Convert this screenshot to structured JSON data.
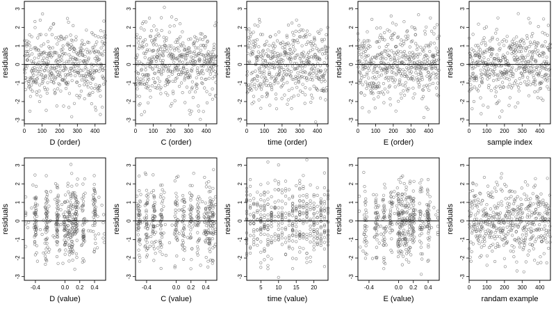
{
  "chart_data": [
    {
      "type": "scatter",
      "xlabel": "D (order)",
      "ylabel": "residuals",
      "x_range": [
        0,
        460
      ],
      "ylim": [
        -3.2,
        3.4
      ],
      "xticks": [
        0,
        100,
        200,
        300,
        400
      ],
      "yticks": [
        -3,
        -2,
        -1,
        0,
        1,
        2,
        3
      ],
      "hline": 0,
      "n_points": 460,
      "x_pattern": "index",
      "seed": 11
    },
    {
      "type": "scatter",
      "xlabel": "C (order)",
      "ylabel": "residuals",
      "x_range": [
        0,
        460
      ],
      "ylim": [
        -3.2,
        3.4
      ],
      "xticks": [
        0,
        100,
        200,
        300,
        400
      ],
      "yticks": [
        -3,
        -2,
        -1,
        0,
        1,
        2,
        3
      ],
      "hline": 0,
      "n_points": 460,
      "x_pattern": "index",
      "seed": 23
    },
    {
      "type": "scatter",
      "xlabel": "time (order)",
      "ylabel": "residuals",
      "x_range": [
        0,
        460
      ],
      "ylim": [
        -3.2,
        3.4
      ],
      "xticks": [
        0,
        100,
        200,
        300,
        400
      ],
      "yticks": [
        -3,
        -2,
        -1,
        0,
        1,
        2,
        3
      ],
      "hline": 0,
      "n_points": 460,
      "x_pattern": "index",
      "seed": 37
    },
    {
      "type": "scatter",
      "xlabel": "E (order)",
      "ylabel": "residuals",
      "x_range": [
        0,
        460
      ],
      "ylim": [
        -3.2,
        3.4
      ],
      "xticks": [
        0,
        100,
        200,
        300,
        400
      ],
      "yticks": [
        -3,
        -2,
        -1,
        0,
        1,
        2,
        3
      ],
      "hline": 0,
      "n_points": 460,
      "x_pattern": "index",
      "seed": 41
    },
    {
      "type": "scatter",
      "xlabel": "sample index",
      "ylabel": "residuals",
      "x_range": [
        0,
        460
      ],
      "ylim": [
        -3.2,
        3.4
      ],
      "xticks": [
        0,
        100,
        200,
        300,
        400
      ],
      "yticks": [
        -3,
        -2,
        -1,
        0,
        1,
        2,
        3
      ],
      "hline": 0,
      "n_points": 460,
      "x_pattern": "index",
      "seed": 53
    },
    {
      "type": "scatter",
      "xlabel": "D (value)",
      "ylabel": "residuals",
      "x_range": [
        -0.55,
        0.55
      ],
      "ylim": [
        -3.2,
        3.4
      ],
      "xticks": [
        -0.4,
        0.0,
        0.2,
        0.4
      ],
      "xtick_labels": [
        "-0.4",
        "0.0",
        "0.2",
        "0.4"
      ],
      "yticks": [
        -3,
        -2,
        -1,
        0,
        1,
        2,
        3
      ],
      "hline": 0,
      "n_points": 460,
      "x_pattern": "clustered",
      "x_clusters": [
        -0.4,
        -0.25,
        -0.1,
        0.0,
        0.05,
        0.1,
        0.15,
        0.25,
        0.4
      ],
      "x_spread": 0.5,
      "seed": 61
    },
    {
      "type": "scatter",
      "xlabel": "C (value)",
      "ylabel": "residuals",
      "x_range": [
        -0.55,
        0.55
      ],
      "ylim": [
        -3.2,
        3.4
      ],
      "xticks": [
        -0.4,
        0.0,
        0.2,
        0.4
      ],
      "xtick_labels": [
        "-0.4",
        "0.0",
        "0.2",
        "0.4"
      ],
      "yticks": [
        -3,
        -2,
        -1,
        0,
        1,
        2,
        3
      ],
      "hline": 0,
      "n_points": 460,
      "x_pattern": "clustered",
      "x_clusters": [
        -0.5,
        -0.4,
        -0.3,
        -0.2,
        0.0,
        0.1,
        0.2,
        0.3,
        0.4,
        0.45,
        0.5
      ],
      "x_spread": 0.3,
      "seed": 73
    },
    {
      "type": "scatter",
      "xlabel": "time (value)",
      "ylabel": "residuals",
      "x_range": [
        1,
        24
      ],
      "ylim": [
        -3.2,
        3.4
      ],
      "xticks": [
        5,
        10,
        15,
        20
      ],
      "yticks": [
        -3,
        -2,
        -1,
        0,
        1,
        2,
        3
      ],
      "hline": 0,
      "n_points": 460,
      "x_pattern": "integers",
      "x_integer_range": [
        1,
        24
      ],
      "seed": 89
    },
    {
      "type": "scatter",
      "xlabel": "E (value)",
      "ylabel": "residuals",
      "x_range": [
        -0.55,
        0.55
      ],
      "ylim": [
        -3.2,
        3.4
      ],
      "xticks": [
        -0.4,
        0.0,
        0.2,
        0.4
      ],
      "xtick_labels": [
        "-0.4",
        "0.0",
        "0.2",
        "0.4"
      ],
      "yticks": [
        -3,
        -2,
        -1,
        0,
        1,
        2,
        3
      ],
      "hline": 0,
      "n_points": 460,
      "x_pattern": "clustered",
      "x_clusters": [
        -0.45,
        -0.3,
        -0.2,
        -0.1,
        0.0,
        0.05,
        0.1,
        0.15,
        0.2,
        0.3,
        0.4
      ],
      "x_spread": 0.6,
      "seed": 97
    },
    {
      "type": "scatter",
      "xlabel": "randam example",
      "ylabel": "residuals",
      "x_range": [
        0,
        460
      ],
      "ylim": [
        -3.2,
        3.4
      ],
      "xticks": [
        0,
        100,
        200,
        300,
        400
      ],
      "yticks": [
        -3,
        -2,
        -1,
        0,
        1,
        2,
        3
      ],
      "hline": 0,
      "n_points": 460,
      "x_pattern": "index",
      "seed": 101
    }
  ]
}
